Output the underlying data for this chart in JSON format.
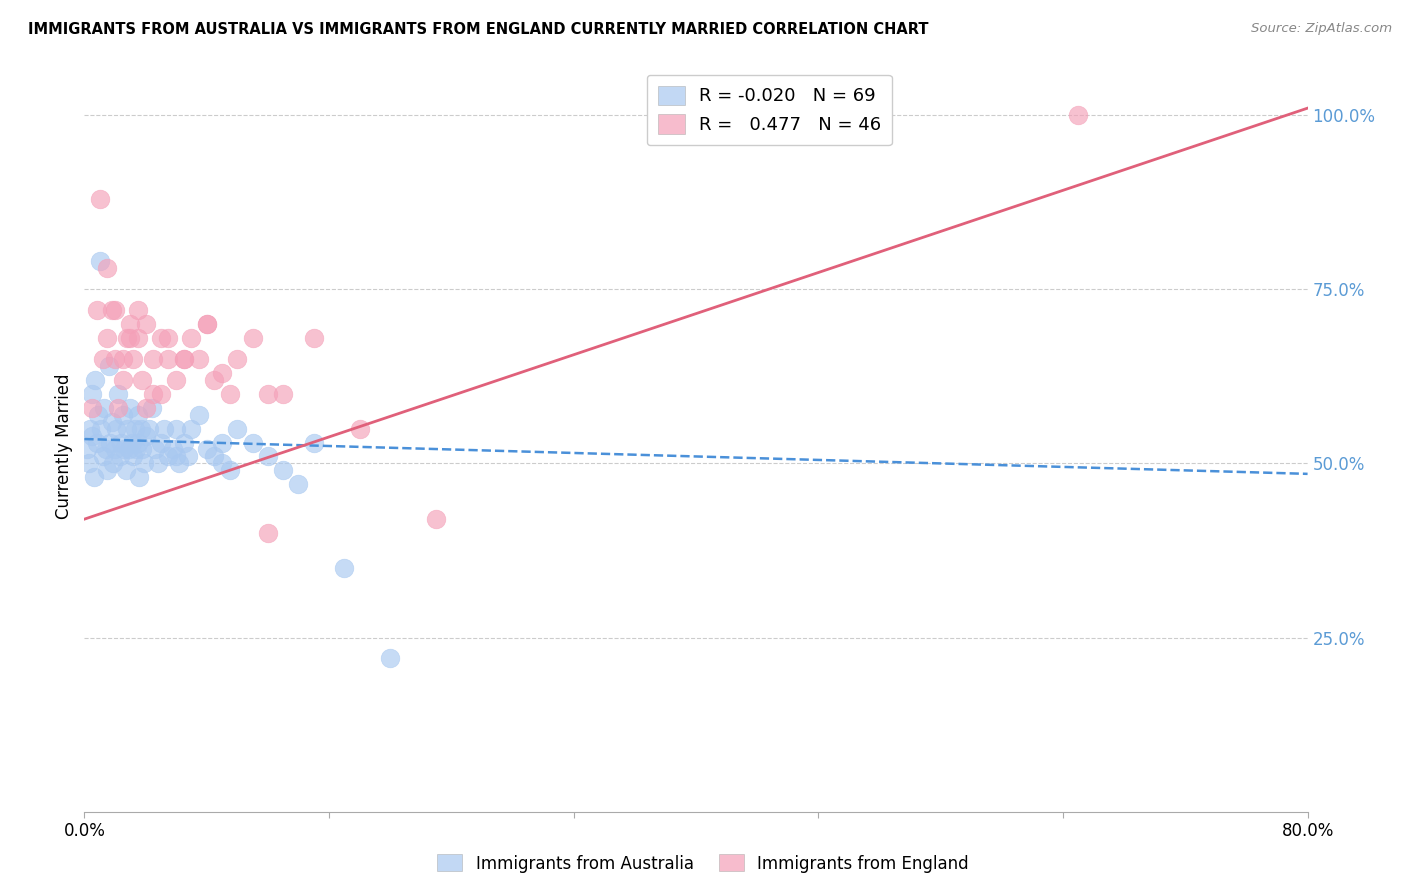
{
  "title": "IMMIGRANTS FROM AUSTRALIA VS IMMIGRANTS FROM ENGLAND CURRENTLY MARRIED CORRELATION CHART",
  "source": "Source: ZipAtlas.com",
  "ylabel": "Currently Married",
  "legend_label1": "Immigrants from Australia",
  "legend_label2": "Immigrants from England",
  "R1": "-0.020",
  "N1": "69",
  "R2": "0.477",
  "N2": "46",
  "color_australia": "#a8c8f0",
  "color_england": "#f4a0b8",
  "color_trendline_australia": "#4a90d9",
  "color_trendline_england": "#e0607a",
  "color_axis_right": "#5b9bd5",
  "background_color": "#ffffff",
  "xlim": [
    0.0,
    80.0
  ],
  "ylim": [
    0.0,
    105.0
  ],
  "trendline_aus_x0": 0.0,
  "trendline_aus_y0": 53.5,
  "trendline_aus_x1": 80.0,
  "trendline_aus_y1": 48.5,
  "trendline_eng_x0": 0.0,
  "trendline_eng_y0": 42.0,
  "trendline_eng_x1": 80.0,
  "trendline_eng_y1": 101.0,
  "australia_x": [
    0.2,
    0.3,
    0.4,
    0.5,
    0.5,
    0.6,
    0.7,
    0.8,
    0.9,
    1.0,
    1.1,
    1.2,
    1.3,
    1.4,
    1.5,
    1.6,
    1.7,
    1.8,
    1.9,
    2.0,
    2.1,
    2.2,
    2.3,
    2.4,
    2.5,
    2.6,
    2.7,
    2.8,
    2.9,
    3.0,
    3.1,
    3.2,
    3.3,
    3.4,
    3.5,
    3.6,
    3.7,
    3.8,
    3.9,
    4.0,
    4.2,
    4.4,
    4.6,
    4.8,
    5.0,
    5.2,
    5.5,
    5.8,
    6.0,
    6.2,
    6.5,
    6.8,
    7.0,
    7.5,
    8.0,
    8.5,
    9.0,
    9.5,
    10.0,
    11.0,
    12.0,
    13.0,
    15.0,
    17.0,
    20.0,
    3.5,
    6.0,
    9.0,
    14.0
  ],
  "australia_y": [
    52,
    50,
    55,
    54,
    60,
    48,
    62,
    53,
    57,
    79,
    55,
    51,
    58,
    52,
    49,
    64,
    53,
    56,
    50,
    52,
    55,
    60,
    51,
    53,
    57,
    52,
    49,
    55,
    52,
    58,
    53,
    51,
    55,
    52,
    57,
    48,
    55,
    52,
    50,
    54,
    55,
    58,
    52,
    50,
    53,
    55,
    51,
    52,
    55,
    50,
    53,
    51,
    55,
    57,
    52,
    51,
    53,
    49,
    55,
    53,
    51,
    49,
    53,
    35,
    22,
    53,
    51,
    50,
    47
  ],
  "england_x": [
    0.5,
    0.8,
    1.0,
    1.2,
    1.5,
    1.8,
    2.0,
    2.2,
    2.5,
    2.8,
    3.0,
    3.2,
    3.5,
    3.8,
    4.0,
    4.5,
    5.0,
    5.5,
    6.0,
    6.5,
    7.0,
    7.5,
    8.0,
    8.5,
    9.0,
    9.5,
    10.0,
    11.0,
    12.0,
    13.0,
    15.0,
    18.0,
    23.0,
    1.5,
    2.0,
    2.5,
    3.0,
    3.5,
    4.0,
    4.5,
    5.0,
    5.5,
    6.5,
    8.0,
    12.0,
    65.0
  ],
  "england_y": [
    58,
    72,
    88,
    65,
    68,
    72,
    65,
    58,
    62,
    68,
    70,
    65,
    68,
    62,
    70,
    60,
    68,
    65,
    62,
    65,
    68,
    65,
    70,
    62,
    63,
    60,
    65,
    68,
    60,
    60,
    68,
    55,
    42,
    78,
    72,
    65,
    68,
    72,
    58,
    65,
    60,
    68,
    65,
    70,
    40,
    100
  ]
}
